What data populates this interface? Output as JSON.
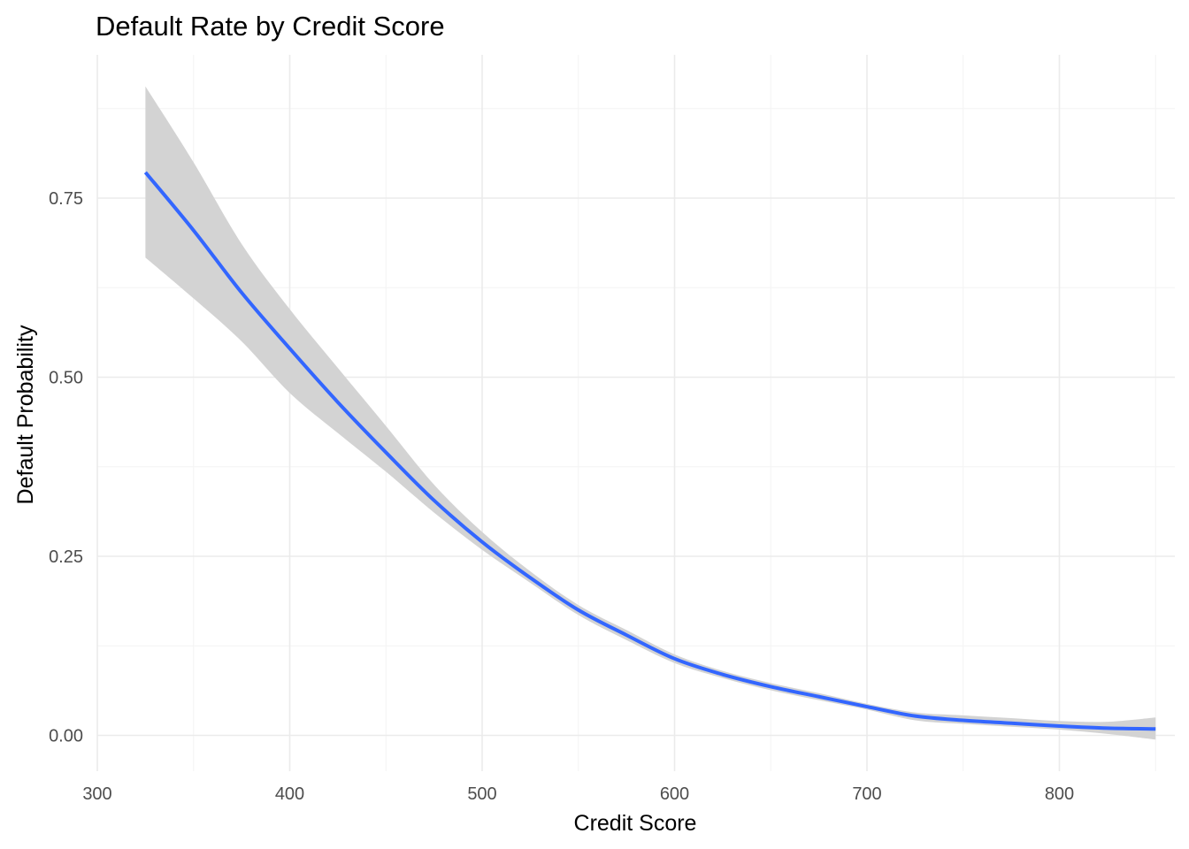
{
  "chart_data": {
    "type": "line",
    "title": "Default Rate by Credit Score",
    "xlabel": "Credit Score",
    "ylabel": "Default Probability",
    "xlim": [
      300,
      860
    ],
    "ylim": [
      -0.05,
      0.95
    ],
    "x_ticks": [
      300,
      400,
      500,
      600,
      700,
      800
    ],
    "x_tick_labels": [
      "300",
      "400",
      "500",
      "600",
      "700",
      "800"
    ],
    "y_ticks": [
      0,
      0.25,
      0.5,
      0.75
    ],
    "y_tick_labels": [
      "0.00",
      "0.25",
      "0.50",
      "0.75"
    ],
    "grid": true,
    "legend": "none",
    "colors": {
      "line": "#3366ff",
      "ribbon": "#d3d3d3",
      "grid": "#ebebeb"
    },
    "series": [
      {
        "x": [
          325,
          350,
          375,
          400,
          425,
          450,
          475,
          500,
          525,
          550,
          575,
          600,
          625,
          650,
          675,
          700,
          725,
          750,
          775,
          800,
          825,
          850
        ],
        "y": [
          0.786,
          0.705,
          0.618,
          0.54,
          0.465,
          0.395,
          0.328,
          0.27,
          0.22,
          0.175,
          0.14,
          0.107,
          0.085,
          0.068,
          0.054,
          0.04,
          0.027,
          0.021,
          0.017,
          0.013,
          0.01,
          0.009
        ],
        "lower": [
          0.667,
          0.61,
          0.55,
          0.478,
          0.422,
          0.368,
          0.311,
          0.259,
          0.213,
          0.168,
          0.133,
          0.101,
          0.08,
          0.063,
          0.049,
          0.036,
          0.021,
          0.016,
          0.012,
          0.008,
          0.002,
          -0.006
        ],
        "upper": [
          0.906,
          0.8,
          0.686,
          0.595,
          0.513,
          0.432,
          0.35,
          0.284,
          0.229,
          0.182,
          0.147,
          0.113,
          0.09,
          0.073,
          0.059,
          0.044,
          0.032,
          0.028,
          0.024,
          0.02,
          0.019,
          0.025
        ]
      }
    ]
  }
}
